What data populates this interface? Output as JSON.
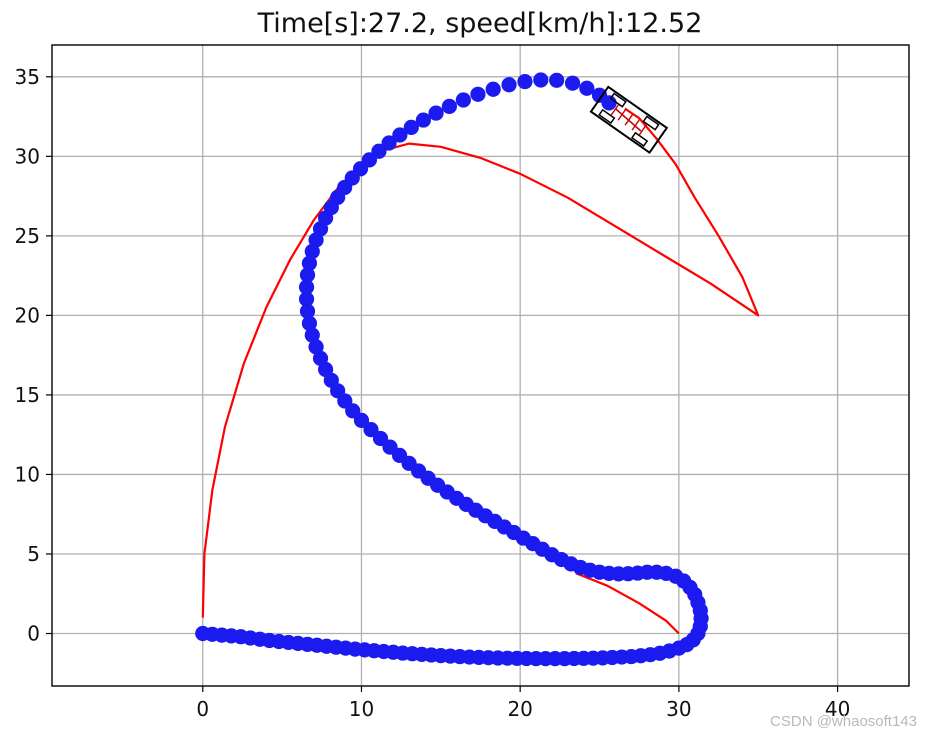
{
  "chart_data": {
    "type": "scatter",
    "title": "Time[s]:27.2, speed[km/h]:12.52",
    "xlim": [
      -9.5,
      44.5
    ],
    "ylim": [
      -3.3,
      37
    ],
    "x_ticks": [
      0,
      10,
      20,
      30,
      40
    ],
    "y_ticks": [
      0,
      5,
      10,
      15,
      20,
      25,
      30,
      35
    ],
    "grid": true,
    "series": [
      {
        "kind": "line",
        "color": "#ff0000",
        "points": [
          [
            0.0,
            1.0
          ],
          [
            0.1,
            5.0
          ],
          [
            0.6,
            9.0
          ],
          [
            1.4,
            13.0
          ],
          [
            2.6,
            17.0
          ],
          [
            4.0,
            20.5
          ],
          [
            5.5,
            23.5
          ],
          [
            7.0,
            26.0
          ],
          [
            8.5,
            28.0
          ],
          [
            10.0,
            29.5
          ],
          [
            11.5,
            30.4
          ],
          [
            13.0,
            30.8
          ],
          [
            15.0,
            30.6
          ],
          [
            17.5,
            29.9
          ],
          [
            20.0,
            28.9
          ],
          [
            23.0,
            27.4
          ],
          [
            26.0,
            25.6
          ],
          [
            29.0,
            23.8
          ],
          [
            32.0,
            22.0
          ],
          [
            35.0,
            20.0
          ],
          [
            34.0,
            22.4
          ],
          [
            32.5,
            25.0
          ],
          [
            31.0,
            27.4
          ],
          [
            29.8,
            29.5
          ],
          [
            28.6,
            31.1
          ],
          [
            27.5,
            32.4
          ],
          [
            26.6,
            33.0
          ]
        ]
      },
      {
        "kind": "line",
        "color": "#ff0000",
        "points": [
          [
            23.5,
            3.8
          ],
          [
            25.5,
            3.0
          ],
          [
            27.5,
            1.9
          ],
          [
            29.2,
            0.8
          ],
          [
            30.0,
            0.0
          ]
        ]
      },
      {
        "kind": "markers",
        "color": "#1b1bf0",
        "points": [
          [
            0.0,
            0.0
          ],
          [
            0.6,
            -0.05
          ],
          [
            1.2,
            -0.1
          ],
          [
            1.8,
            -0.15
          ],
          [
            2.4,
            -0.2
          ],
          [
            3.0,
            -0.28
          ],
          [
            3.6,
            -0.36
          ],
          [
            4.2,
            -0.44
          ],
          [
            4.8,
            -0.5
          ],
          [
            5.4,
            -0.56
          ],
          [
            6.0,
            -0.62
          ],
          [
            6.6,
            -0.68
          ],
          [
            7.2,
            -0.74
          ],
          [
            7.8,
            -0.8
          ],
          [
            8.4,
            -0.86
          ],
          [
            9.0,
            -0.92
          ],
          [
            9.6,
            -0.98
          ],
          [
            10.2,
            -1.03
          ],
          [
            10.8,
            -1.08
          ],
          [
            11.4,
            -1.13
          ],
          [
            12.0,
            -1.18
          ],
          [
            12.6,
            -1.23
          ],
          [
            13.2,
            -1.27
          ],
          [
            13.8,
            -1.31
          ],
          [
            14.4,
            -1.35
          ],
          [
            15.0,
            -1.39
          ],
          [
            15.6,
            -1.42
          ],
          [
            16.2,
            -1.45
          ],
          [
            16.8,
            -1.48
          ],
          [
            17.4,
            -1.5
          ],
          [
            18.0,
            -1.52
          ],
          [
            18.6,
            -1.54
          ],
          [
            19.2,
            -1.55
          ],
          [
            19.8,
            -1.56
          ],
          [
            20.4,
            -1.57
          ],
          [
            21.0,
            -1.58
          ],
          [
            21.6,
            -1.58
          ],
          [
            22.2,
            -1.58
          ],
          [
            22.8,
            -1.58
          ],
          [
            23.4,
            -1.57
          ],
          [
            24.0,
            -1.56
          ],
          [
            24.6,
            -1.55
          ],
          [
            25.2,
            -1.53
          ],
          [
            25.8,
            -1.51
          ],
          [
            26.4,
            -1.48
          ],
          [
            27.0,
            -1.45
          ],
          [
            27.6,
            -1.4
          ],
          [
            28.2,
            -1.33
          ],
          [
            28.8,
            -1.24
          ],
          [
            29.4,
            -1.1
          ],
          [
            30.0,
            -0.92
          ],
          [
            30.5,
            -0.7
          ],
          [
            30.9,
            -0.4
          ],
          [
            31.2,
            0.0
          ],
          [
            31.35,
            0.45
          ],
          [
            31.4,
            0.95
          ],
          [
            31.35,
            1.45
          ],
          [
            31.2,
            1.95
          ],
          [
            31.0,
            2.45
          ],
          [
            30.7,
            2.9
          ],
          [
            30.3,
            3.3
          ],
          [
            29.8,
            3.6
          ],
          [
            29.2,
            3.78
          ],
          [
            28.6,
            3.85
          ],
          [
            28.0,
            3.85
          ],
          [
            27.4,
            3.8
          ],
          [
            26.8,
            3.76
          ],
          [
            26.2,
            3.75
          ],
          [
            25.6,
            3.78
          ],
          [
            25.0,
            3.85
          ],
          [
            24.4,
            3.98
          ],
          [
            23.8,
            4.15
          ],
          [
            23.2,
            4.38
          ],
          [
            22.6,
            4.65
          ],
          [
            22.0,
            4.95
          ],
          [
            21.4,
            5.3
          ],
          [
            20.8,
            5.65
          ],
          [
            20.2,
            6.0
          ],
          [
            19.6,
            6.35
          ],
          [
            19.0,
            6.7
          ],
          [
            18.4,
            7.05
          ],
          [
            17.8,
            7.4
          ],
          [
            17.2,
            7.75
          ],
          [
            16.6,
            8.12
          ],
          [
            16.0,
            8.5
          ],
          [
            15.4,
            8.9
          ],
          [
            14.8,
            9.32
          ],
          [
            14.2,
            9.76
          ],
          [
            13.6,
            10.22
          ],
          [
            13.0,
            10.7
          ],
          [
            12.4,
            11.2
          ],
          [
            11.8,
            11.72
          ],
          [
            11.2,
            12.26
          ],
          [
            10.6,
            12.82
          ],
          [
            10.0,
            13.4
          ],
          [
            9.45,
            14.0
          ],
          [
            8.95,
            14.62
          ],
          [
            8.5,
            15.26
          ],
          [
            8.1,
            15.92
          ],
          [
            7.74,
            16.6
          ],
          [
            7.42,
            17.3
          ],
          [
            7.14,
            18.02
          ],
          [
            6.9,
            18.76
          ],
          [
            6.72,
            19.5
          ],
          [
            6.6,
            20.26
          ],
          [
            6.54,
            21.02
          ],
          [
            6.54,
            21.78
          ],
          [
            6.6,
            22.54
          ],
          [
            6.72,
            23.28
          ],
          [
            6.9,
            24.02
          ],
          [
            7.14,
            24.74
          ],
          [
            7.42,
            25.44
          ],
          [
            7.74,
            26.12
          ],
          [
            8.1,
            26.78
          ],
          [
            8.5,
            27.42
          ],
          [
            8.94,
            28.04
          ],
          [
            9.42,
            28.64
          ],
          [
            9.94,
            29.22
          ],
          [
            10.5,
            29.78
          ],
          [
            11.1,
            30.32
          ],
          [
            11.74,
            30.84
          ],
          [
            12.42,
            31.34
          ],
          [
            13.14,
            31.82
          ],
          [
            13.9,
            32.28
          ],
          [
            14.7,
            32.72
          ],
          [
            15.54,
            33.14
          ],
          [
            16.42,
            33.54
          ],
          [
            17.34,
            33.9
          ],
          [
            18.3,
            34.22
          ],
          [
            19.3,
            34.5
          ],
          [
            20.3,
            34.7
          ],
          [
            21.3,
            34.8
          ],
          [
            22.3,
            34.78
          ],
          [
            23.3,
            34.6
          ],
          [
            24.2,
            34.28
          ],
          [
            25.0,
            33.84
          ],
          [
            25.6,
            33.36
          ]
        ]
      },
      {
        "kind": "vehicle",
        "color": "#000000",
        "accent": "#cc0000",
        "center": [
          26.85,
          32.3
        ],
        "heading_deg": -35,
        "length": 4.5,
        "width": 1.9,
        "track": [
          [
            26.0,
            33.0
          ],
          [
            27.6,
            31.6
          ]
        ]
      }
    ]
  },
  "watermark": "CSDN @whaosoft143"
}
